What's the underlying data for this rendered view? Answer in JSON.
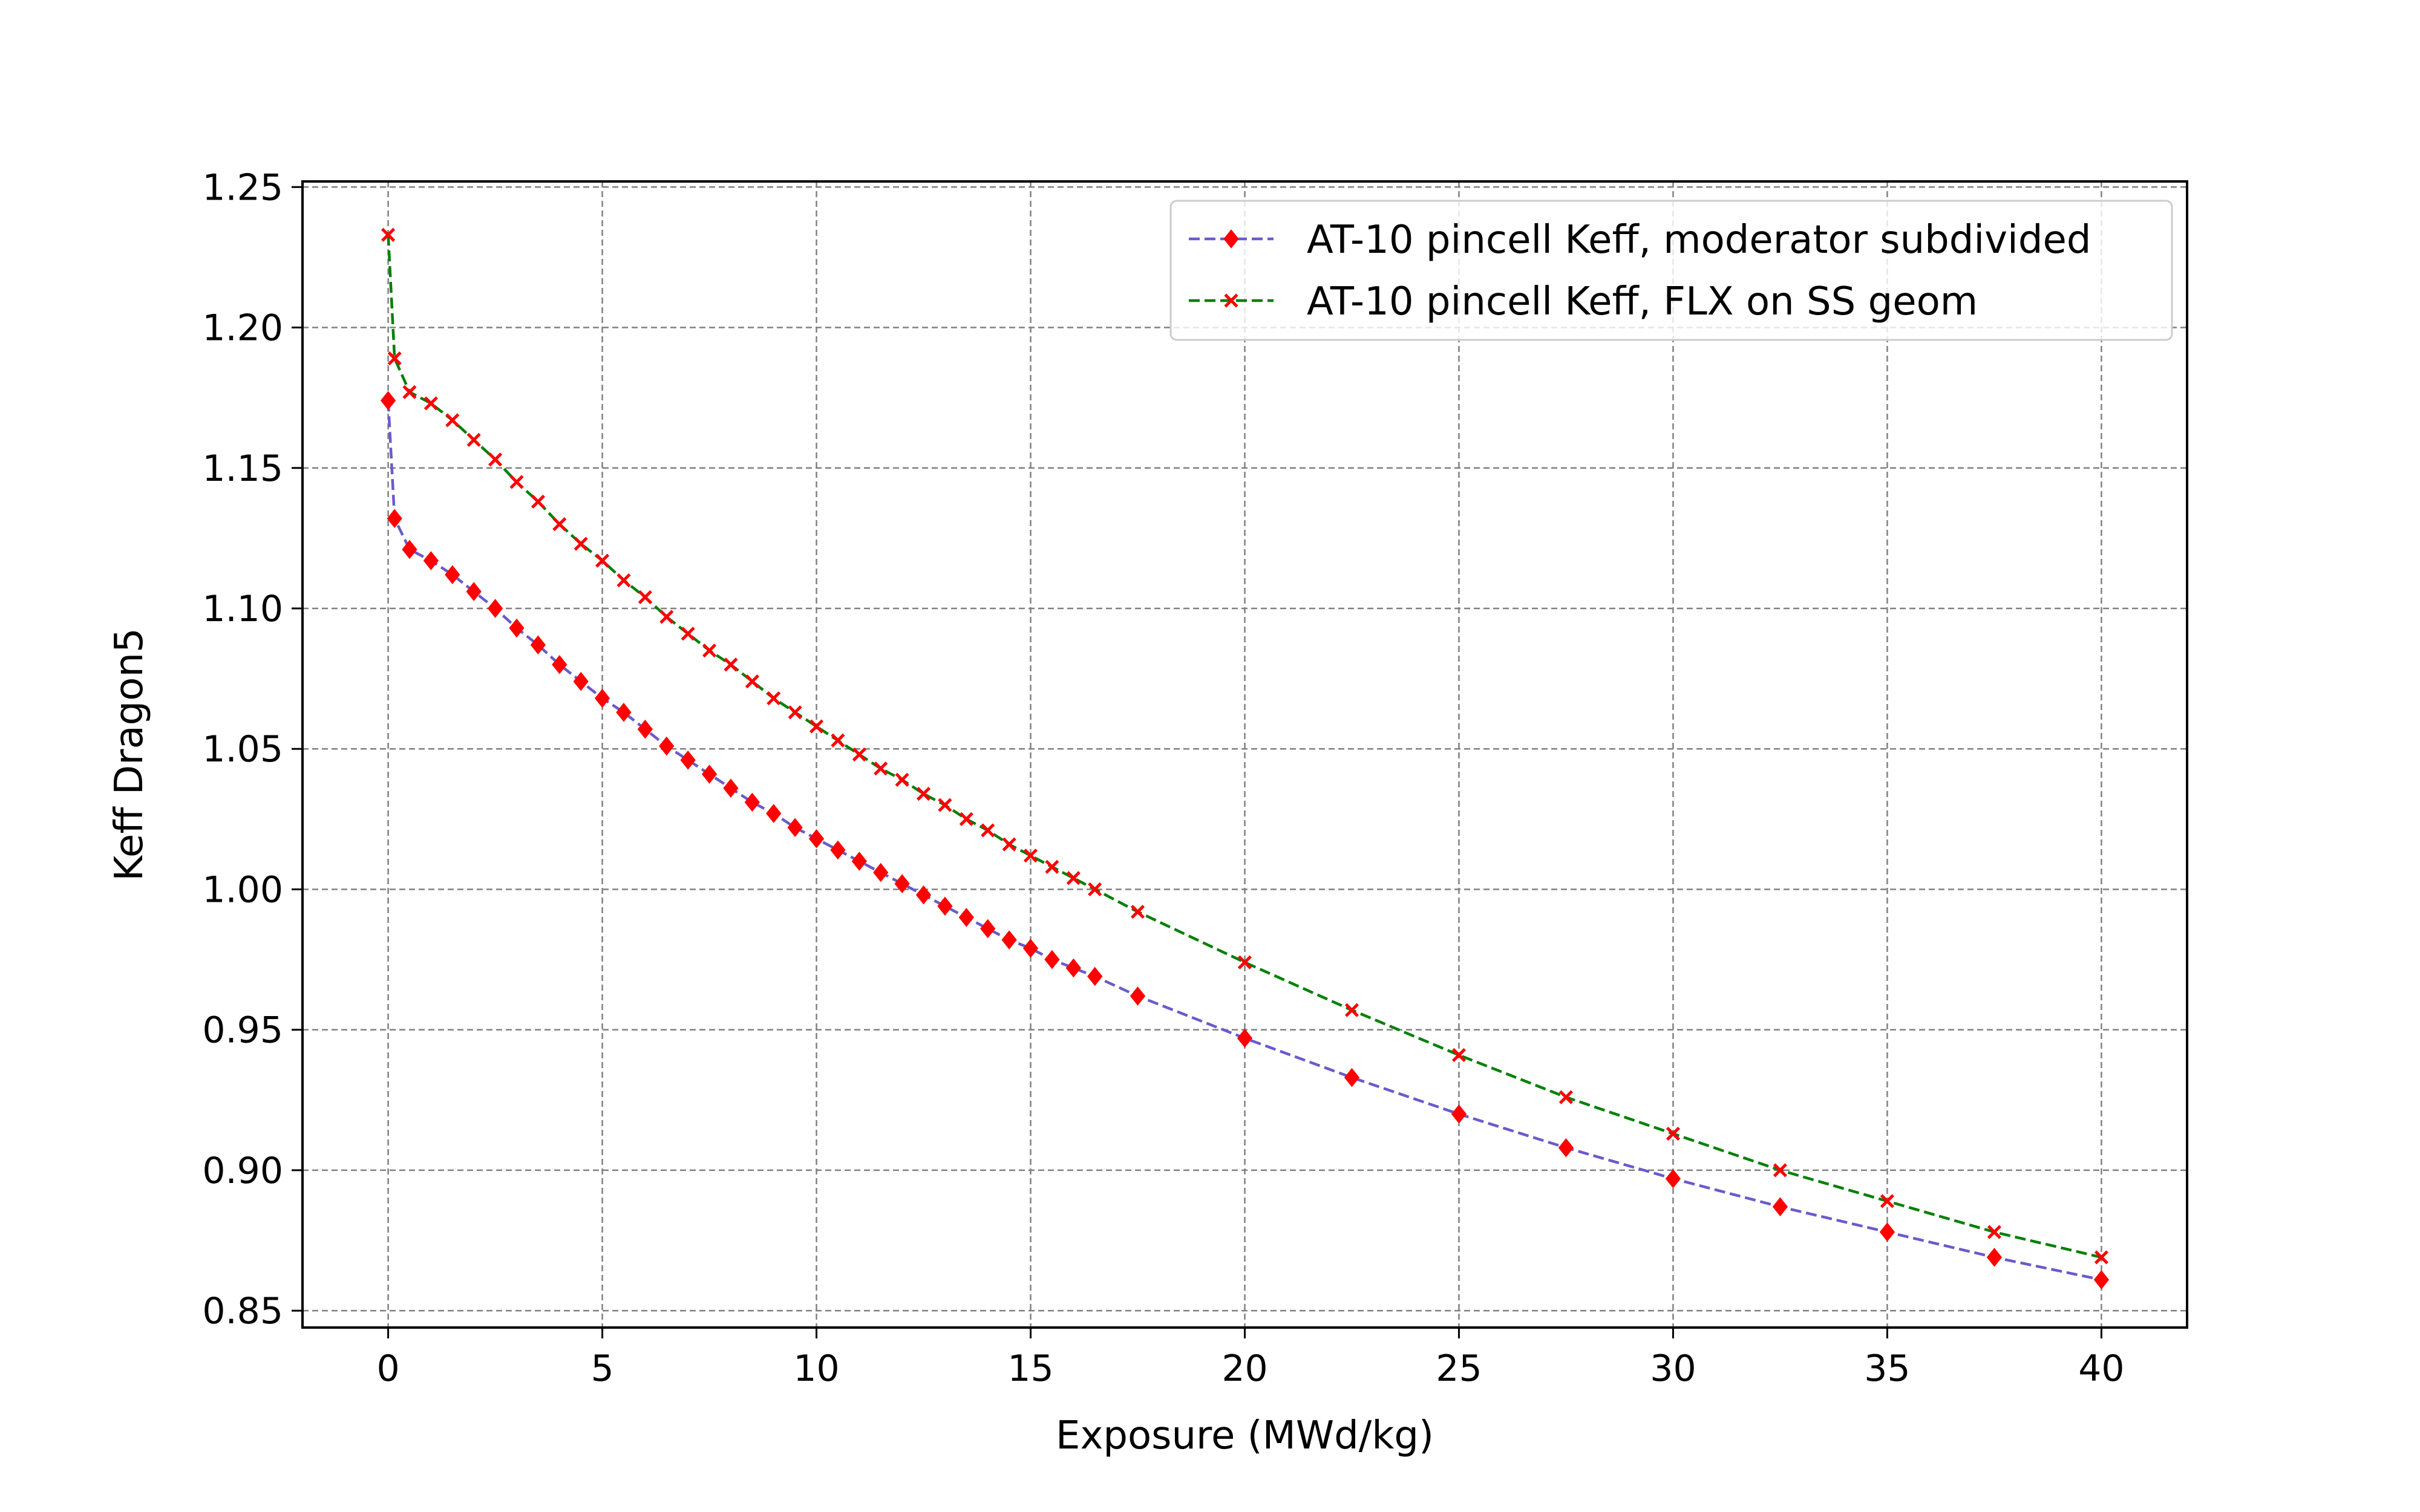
{
  "chart_data": {
    "type": "line",
    "title": "",
    "xlabel": "Exposure (MWd/kg)",
    "ylabel": "Keff Dragon5",
    "xlim": [
      -2,
      42
    ],
    "ylim": [
      0.844,
      1.252
    ],
    "xticks": [
      0,
      5,
      10,
      15,
      20,
      25,
      30,
      35,
      40
    ],
    "xtick_labels": [
      "0",
      "5",
      "10",
      "15",
      "20",
      "25",
      "30",
      "35",
      "40"
    ],
    "yticks": [
      0.85,
      0.9,
      0.95,
      1.0,
      1.05,
      1.1,
      1.15,
      1.2,
      1.25
    ],
    "ytick_labels": [
      "0.85",
      "0.90",
      "0.95",
      "1.00",
      "1.05",
      "1.10",
      "1.15",
      "1.20",
      "1.25"
    ],
    "grid": true,
    "legend_position": "top-right",
    "series": [
      {
        "name": "AT-10 pincell Keff, moderator subdivided",
        "line_color": "#6a5acd",
        "marker_color": "#ff0000",
        "marker": "diamond",
        "line_style": "dashed",
        "x": [
          0,
          0.15,
          0.5,
          1,
          1.5,
          2,
          2.5,
          3,
          3.5,
          4,
          4.5,
          5,
          5.5,
          6,
          6.5,
          7,
          7.5,
          8,
          8.5,
          9,
          9.5,
          10,
          10.5,
          11,
          11.5,
          12,
          12.5,
          13,
          13.5,
          14,
          14.5,
          15,
          15.5,
          16,
          16.5,
          17.5,
          20,
          22.5,
          25,
          27.5,
          30,
          32.5,
          35,
          37.5,
          40
        ],
        "y": [
          1.174,
          1.132,
          1.121,
          1.117,
          1.112,
          1.106,
          1.1,
          1.093,
          1.087,
          1.08,
          1.074,
          1.068,
          1.063,
          1.057,
          1.051,
          1.046,
          1.041,
          1.036,
          1.031,
          1.027,
          1.022,
          1.018,
          1.014,
          1.01,
          1.006,
          1.002,
          0.998,
          0.994,
          0.99,
          0.986,
          0.982,
          0.979,
          0.975,
          0.972,
          0.969,
          0.962,
          0.947,
          0.933,
          0.92,
          0.908,
          0.897,
          0.887,
          0.878,
          0.869,
          0.861
        ]
      },
      {
        "name": "AT-10 pincell Keff, FLX on SS geom",
        "line_color": "#008000",
        "marker_color": "#ff0000",
        "marker": "x",
        "line_style": "dashed",
        "x": [
          0,
          0.15,
          0.5,
          1,
          1.5,
          2,
          2.5,
          3,
          3.5,
          4,
          4.5,
          5,
          5.5,
          6,
          6.5,
          7,
          7.5,
          8,
          8.5,
          9,
          9.5,
          10,
          10.5,
          11,
          11.5,
          12,
          12.5,
          13,
          13.5,
          14,
          14.5,
          15,
          15.5,
          16,
          16.5,
          17.5,
          20,
          22.5,
          25,
          27.5,
          30,
          32.5,
          35,
          37.5,
          40
        ],
        "y": [
          1.233,
          1.189,
          1.177,
          1.173,
          1.167,
          1.16,
          1.153,
          1.145,
          1.138,
          1.13,
          1.123,
          1.117,
          1.11,
          1.104,
          1.097,
          1.091,
          1.085,
          1.08,
          1.074,
          1.068,
          1.063,
          1.058,
          1.053,
          1.048,
          1.043,
          1.039,
          1.034,
          1.03,
          1.025,
          1.021,
          1.016,
          1.012,
          1.008,
          1.004,
          1.0,
          0.992,
          0.974,
          0.957,
          0.941,
          0.926,
          0.913,
          0.9,
          0.889,
          0.878,
          0.869
        ]
      }
    ]
  }
}
